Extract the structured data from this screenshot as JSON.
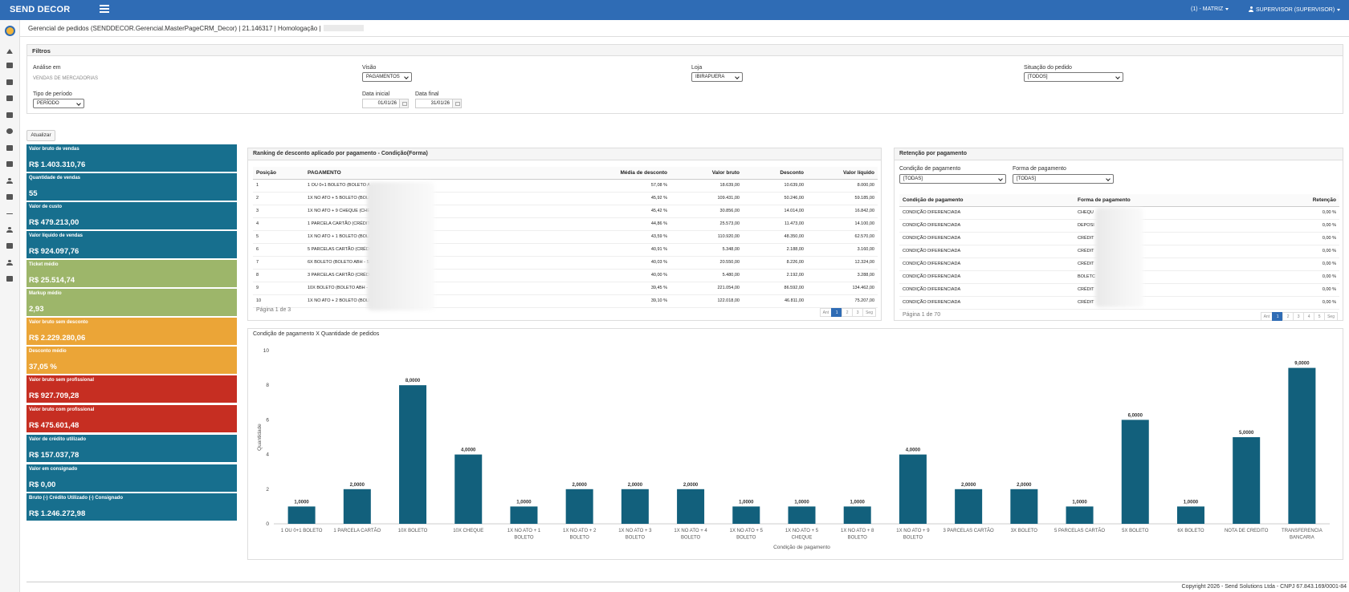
{
  "topbar": {
    "brand": "SEND DECOR",
    "matriz": "(1) - MATRIZ",
    "user": "SUPERVISOR (SUPERVISOR)"
  },
  "header": {
    "title": "Gerencial de pedidos (SENDDECOR.Gerencial.MasterPageCRM_Decor) | 21.146317 | Homologação |"
  },
  "filters": {
    "title": "Filtros",
    "analise_label": "Análise em",
    "analise_value": "VENDAS DE MERCADORIAS",
    "visao_label": "Visão",
    "visao_value": "PAGAMENTOS",
    "loja_label": "Loja",
    "loja_value": "IBIRAPUERA",
    "situacao_label": "Situação do pedido",
    "situacao_value": "[TODOS]",
    "tipo_label": "Tipo de período",
    "tipo_value": "PERÍODO",
    "data_inicial_label": "Data inicial",
    "data_inicial_value": "01/01/26",
    "data_final_label": "Data final",
    "data_final_value": "31/01/26"
  },
  "actions": {
    "atualizar": "Atualizar"
  },
  "kpis": [
    {
      "label": "Valor bruto de vendas",
      "value": "R$ 1.403.310,76",
      "color": "#176f8e"
    },
    {
      "label": "Quantidade de vendas",
      "value": "55",
      "color": "#176f8e"
    },
    {
      "label": "Valor de custo",
      "value": "R$ 479.213,00",
      "color": "#176f8e"
    },
    {
      "label": "Valor líquido de vendas",
      "value": "R$ 924.097,76",
      "color": "#176f8e"
    },
    {
      "label": "Ticket médio",
      "value": "R$ 25.514,74",
      "color": "#9db66a"
    },
    {
      "label": "Markup médio",
      "value": "2,93",
      "color": "#9db66a"
    },
    {
      "label": "Valor bruto sem desconto",
      "value": "R$ 2.229.280,06",
      "color": "#eba537"
    },
    {
      "label": "Desconto médio",
      "value": "37,05 %",
      "color": "#eba537"
    },
    {
      "label": "Valor bruto sem profissional",
      "value": "R$ 927.709,28",
      "color": "#c62e22"
    },
    {
      "label": "Valor bruto com profissional",
      "value": "R$ 475.601,48",
      "color": "#c62e22"
    },
    {
      "label": "Valor de crédito utilizado",
      "value": "R$ 157.037,78",
      "color": "#176f8e"
    },
    {
      "label": "Valor em consignado",
      "value": "R$ 0,00",
      "color": "#176f8e"
    },
    {
      "label": "Bruto (-) Crédito Utilizado (-) Consignado",
      "value": "R$ 1.246.272,98",
      "color": "#176f8e"
    }
  ],
  "ranking": {
    "title": "Ranking de desconto aplicado por pagamento - Condição(Forma)",
    "headers": [
      "Posição",
      "PAGAMENTO",
      "Média de desconto",
      "Valor bruto",
      "Desconto",
      "Valor líquido"
    ],
    "rows": [
      [
        "1",
        "1 OU 0+1 BOLETO (BOLETO A",
        "57,08 %",
        "18.639,00",
        "10.639,00",
        "8.000,00"
      ],
      [
        "2",
        "1X NO ATO + 5 BOLETO (BOLI",
        "45,92 %",
        "109.431,00",
        "50.246,00",
        "59.185,00"
      ],
      [
        "3",
        "1X NO ATO + 9 CHEQUE (CHE",
        "45,42 %",
        "30.856,00",
        "14.014,00",
        "16.842,00"
      ],
      [
        "4",
        "1 PARCELA CARTÃO (CRÉDIT",
        "44,86 %",
        "25.573,00",
        "11.473,00",
        "14.100,00"
      ],
      [
        "5",
        "1X NO ATO + 1 BOLETO (BOLI",
        "43,59 %",
        "110.920,00",
        "48.350,00",
        "62.570,00"
      ],
      [
        "6",
        "5 PARCELAS CARTÃO (CRÉDI",
        "40,91 %",
        "5.348,00",
        "2.188,00",
        "3.160,00"
      ],
      [
        "7",
        "6X BOLETO (BOLETO ABH - S",
        "40,03 %",
        "20.550,00",
        "8.226,00",
        "12.324,00"
      ],
      [
        "8",
        "3 PARCELAS CARTÃO (CRÉDI",
        "40,00 %",
        "5.480,00",
        "2.192,00",
        "3.288,00"
      ],
      [
        "9",
        "10X BOLETO (BOLETO ABH -",
        "39,45 %",
        "221.054,00",
        "86.592,00",
        "134.462,00"
      ],
      [
        "10",
        "1X NO ATO + 2 BOLETO (BOLI",
        "39,10 %",
        "122.018,00",
        "46.811,00",
        "75.207,00"
      ]
    ],
    "page_info": "Página 1 de 3",
    "pager": [
      "Ant",
      "1",
      "2",
      "3",
      "Seg"
    ]
  },
  "retencao": {
    "title": "Retenção por pagamento",
    "condicao_label": "Condição de pagamento",
    "condicao_value": "[TODAS]",
    "forma_label": "Forma de pagamento",
    "forma_value": "[TODAS]",
    "headers": [
      "Condição de pagamento",
      "Forma de pagamento",
      "Retenção"
    ],
    "rows": [
      [
        "CONDIÇÃO DIFERENCIADA",
        "CHEQU",
        "0,00 %"
      ],
      [
        "CONDIÇÃO DIFERENCIADA",
        "DEPOSI",
        "0,00 %"
      ],
      [
        "CONDIÇÃO DIFERENCIADA",
        "CRÉDIT",
        "0,00 %"
      ],
      [
        "CONDIÇÃO DIFERENCIADA",
        "CRÉDIT",
        "0,00 %"
      ],
      [
        "CONDIÇÃO DIFERENCIADA",
        "CRÉDIT",
        "0,00 %"
      ],
      [
        "CONDIÇÃO DIFERENCIADA",
        "BOLETC",
        "0,00 %"
      ],
      [
        "CONDIÇÃO DIFERENCIADA",
        "CRÉDIT",
        "0,00 %"
      ],
      [
        "CONDIÇÃO DIFERENCIADA",
        "CRÉDIT",
        "0,00 %"
      ]
    ],
    "page_info": "Página 1 de 70",
    "pager": [
      "Ant",
      "1",
      "2",
      "3",
      "4",
      "5",
      "Seg"
    ]
  },
  "chart_data": {
    "type": "bar",
    "title": "Condição de pagamento X Quantidade de pedidos",
    "xlabel": "Condição de pagamento",
    "ylabel": "Quantidade",
    "ylim": [
      0,
      10
    ],
    "yticks": [
      "0",
      "2",
      "4",
      "6",
      "8",
      "10"
    ],
    "categories": [
      [
        "1 OU 0+1 BOLETO"
      ],
      [
        "1 PARCELA CARTÃO"
      ],
      [
        "10X BOLETO"
      ],
      [
        "10X CHEQUE"
      ],
      [
        "1X NO ATO + 1",
        "BOLETO"
      ],
      [
        "1X NO ATO + 2",
        "BOLETO"
      ],
      [
        "1X NO ATO + 3",
        "BOLETO"
      ],
      [
        "1X NO ATO + 4",
        "BOLETO"
      ],
      [
        "1X NO ATO + 5",
        "BOLETO"
      ],
      [
        "1X NO ATO + 5",
        "CHEQUE"
      ],
      [
        "1X NO ATO + 8",
        "BOLETO"
      ],
      [
        "1X NO ATO + 9",
        "BOLETO"
      ],
      [
        "3 PARCELAS CARTÃO"
      ],
      [
        "3X BOLETO"
      ],
      [
        "5 PARCELAS CARTÃO"
      ],
      [
        "5X BOLETO"
      ],
      [
        "6X BOLETO"
      ],
      [
        "NOTA DE CREDITO"
      ],
      [
        "TRANSFERENCIA",
        "BANCARIA"
      ]
    ],
    "values": [
      1,
      2,
      8,
      4,
      1,
      2,
      2,
      2,
      1,
      1,
      1,
      4,
      2,
      2,
      1,
      6,
      1,
      5,
      9
    ],
    "value_labels": [
      "1,0000",
      "2,0000",
      "8,0000",
      "4,0000",
      "1,0000",
      "2,0000",
      "2,0000",
      "2,0000",
      "1,0000",
      "1,0000",
      "1,0000",
      "4,0000",
      "2,0000",
      "2,0000",
      "1,0000",
      "6,0000",
      "1,0000",
      "5,0000",
      "9,0000"
    ],
    "bar_color": "#12607c",
    "grid": false,
    "legend": "none"
  },
  "footer": {
    "text": "Copyright 2026 - Send Solutions Ltda - CNPJ 67.843.169/0001-84"
  }
}
